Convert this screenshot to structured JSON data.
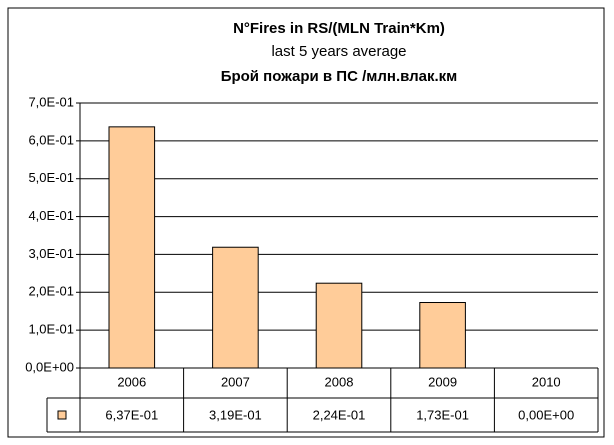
{
  "chart_data": {
    "type": "bar",
    "title": "N°Fires in RS/(MLN Train*Km)",
    "subtitle": "last 5 years average",
    "title_local": "Брой пожари в ПС /млн.влак.км",
    "categories": [
      "2006",
      "2007",
      "2008",
      "2009",
      "2010"
    ],
    "values": [
      0.637,
      0.319,
      0.224,
      0.173,
      0
    ],
    "value_labels": [
      "6,37E-01",
      "3,19E-01",
      "2,24E-01",
      "1,73E-01",
      "0,00E+00"
    ],
    "color": "#ffcc99",
    "ylim": [
      0,
      0.7
    ],
    "yticks": [
      {
        "value": 0,
        "label": "0,0E+00"
      },
      {
        "value": 0.1,
        "label": "1,0E-01"
      },
      {
        "value": 0.2,
        "label": "2,0E-01"
      },
      {
        "value": 0.3,
        "label": "3,0E-01"
      },
      {
        "value": 0.4,
        "label": "4,0E-01"
      },
      {
        "value": 0.5,
        "label": "5,0E-01"
      },
      {
        "value": 0.6,
        "label": "6,0E-01"
      },
      {
        "value": 0.7,
        "label": "7,0E-01"
      }
    ],
    "grid": true
  }
}
